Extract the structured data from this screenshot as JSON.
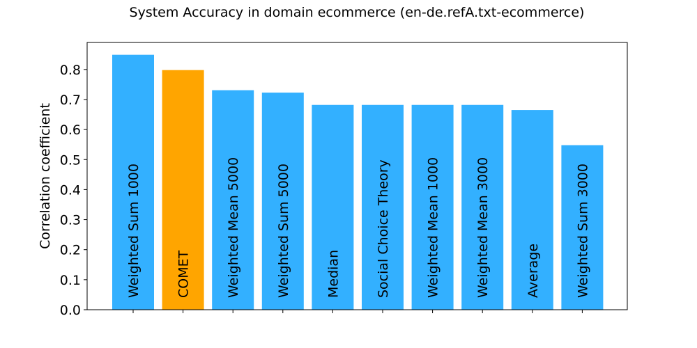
{
  "chart_data": {
    "type": "bar",
    "title": "System Accuracy in domain ecommerce (en-de.refA.txt-ecommerce)",
    "xlabel": "",
    "ylabel": "Correlation coefficient",
    "ylim": [
      0,
      0.89
    ],
    "yticks": [
      "0.0",
      "0.1",
      "0.2",
      "0.3",
      "0.4",
      "0.5",
      "0.6",
      "0.7",
      "0.8"
    ],
    "grid": false,
    "categories": [
      "Weighted Sum 1000",
      "COMET",
      "Weighted Mean 5000",
      "Weighted Sum 5000",
      "Median",
      "Social Choice Theory",
      "Weighted Mean 1000",
      "Weighted Mean 3000",
      "Average",
      "Weighted Sum 3000"
    ],
    "values": [
      0.849,
      0.798,
      0.731,
      0.723,
      0.682,
      0.682,
      0.682,
      0.682,
      0.665,
      0.548
    ],
    "colors": [
      "#33b0ff",
      "#ffa500",
      "#33b0ff",
      "#33b0ff",
      "#33b0ff",
      "#33b0ff",
      "#33b0ff",
      "#33b0ff",
      "#33b0ff",
      "#33b0ff"
    ]
  }
}
